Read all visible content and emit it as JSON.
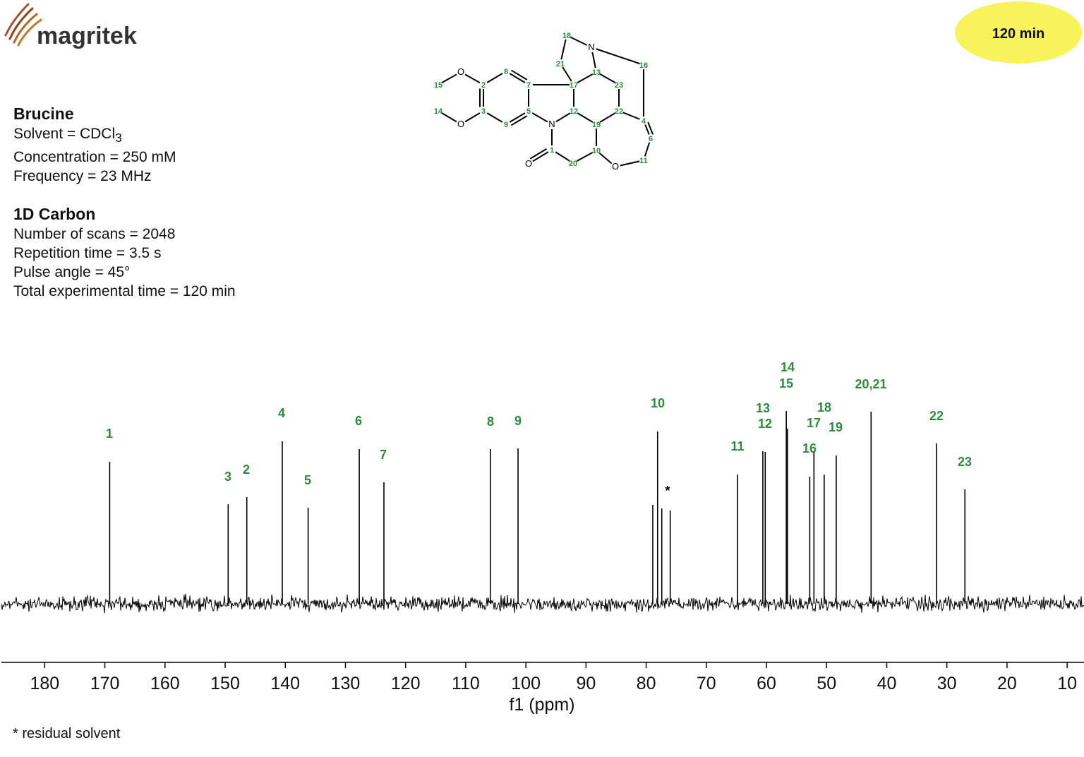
{
  "logo": "magritek",
  "badge": "120 min",
  "info": {
    "compound": "Brucine",
    "solvent": "Solvent = CDCl",
    "solvent_subscript": "3",
    "lines": [
      "Concentration = 250 mM",
      "Frequency = 23 MHz"
    ],
    "experiment": "1D Carbon",
    "params": [
      "Number of scans = 2048",
      "Repetition time = 3.5 s",
      "Pulse angle = 45°",
      "Total experimental time = 120 min"
    ]
  },
  "structure": {
    "atoms": [
      "18",
      "N",
      "21",
      "13",
      "16",
      "17",
      "23",
      "12",
      "22",
      "19",
      "4",
      "6",
      "10",
      "11",
      "O",
      "20",
      "1",
      "O",
      "N",
      "7",
      "5",
      "8",
      "9",
      "2",
      "3",
      "O",
      "O",
      "15",
      "14"
    ]
  },
  "footnote": "* residual solvent",
  "chart_data": {
    "type": "spectrum",
    "x": [
      169.2,
      149.5,
      146.4,
      140.5,
      136.2,
      127.7,
      123.6,
      105.9,
      101.3,
      78.9,
      78.1,
      77.4,
      76.0,
      64.8,
      60.6,
      60.2,
      56.7,
      56.5,
      52.8,
      52.1,
      50.4,
      48.4,
      42.6,
      31.7,
      27.0
    ],
    "values": [
      201,
      141,
      151,
      230,
      136,
      219,
      172,
      219,
      220,
      140,
      244,
      135,
      132,
      183,
      216,
      215,
      273,
      248,
      180,
      215,
      183,
      210,
      272,
      227,
      162
    ],
    "peak_labels": [
      "1",
      "3",
      "2",
      "4",
      "5",
      "6",
      "7",
      "8",
      "9",
      null,
      "10",
      null,
      "*",
      "11",
      "13",
      "12",
      "14",
      "15",
      "16",
      "17",
      "18",
      "19",
      "20,21",
      "22",
      "23"
    ],
    "color": "#000000",
    "label_color": "#2e8b3e",
    "xlabel": "f1 (ppm)",
    "xlim": [
      187.2,
      7.2
    ],
    "ylim": [
      0,
      300
    ],
    "xticks": [
      180,
      170,
      160,
      150,
      140,
      130,
      120,
      110,
      100,
      90,
      80,
      70,
      60,
      50,
      40,
      30,
      20,
      10
    ]
  }
}
